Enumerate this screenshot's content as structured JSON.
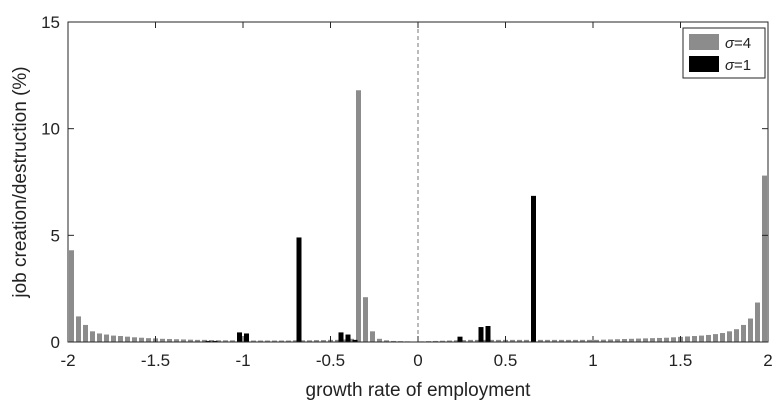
{
  "chart_data": {
    "type": "bar",
    "xlabel": "growth rate of employment",
    "ylabel": "job creation/destruction (%)",
    "xlim": [
      -2,
      2
    ],
    "ylim": [
      0,
      15
    ],
    "xticks": [
      -2,
      -1.5,
      -1,
      -0.5,
      0,
      0.5,
      1,
      1.5,
      2
    ],
    "xtick_labels": [
      "-2",
      "-1.5",
      "-1",
      "-0.5",
      "0",
      "0.5",
      "1",
      "1.5",
      "2"
    ],
    "yticks": [
      0,
      5,
      10,
      15
    ],
    "ytick_labels": [
      "0",
      "5",
      "10",
      "15"
    ],
    "reference_line": {
      "x": 0,
      "style": "dashed"
    },
    "legend": {
      "position": "top-right"
    },
    "series": [
      {
        "name": "σ=4",
        "legend_symbol": "σ",
        "legend_text": "=4",
        "color": "#8c8c8c",
        "x": [
          -1.98,
          -1.94,
          -1.9,
          -1.86,
          -1.82,
          -1.78,
          -1.74,
          -1.7,
          -1.66,
          -1.62,
          -1.58,
          -1.54,
          -1.5,
          -1.46,
          -1.42,
          -1.38,
          -1.34,
          -1.3,
          -1.26,
          -1.22,
          -1.18,
          -1.14,
          -1.1,
          -1.06,
          -0.98,
          -0.94,
          -0.9,
          -0.86,
          -0.82,
          -0.78,
          -0.74,
          -0.7,
          -0.66,
          -0.62,
          -0.58,
          -0.54,
          -0.5,
          -0.46,
          -0.42,
          -0.38,
          -0.34,
          -0.3,
          -0.26,
          -0.22,
          -0.18,
          -0.14,
          -0.1,
          -0.06,
          0.02,
          0.06,
          0.1,
          0.14,
          0.18,
          0.22,
          0.26,
          0.3,
          0.34,
          0.38,
          0.42,
          0.46,
          0.5,
          0.54,
          0.58,
          0.62,
          0.66,
          0.7,
          0.74,
          0.78,
          0.82,
          0.86,
          0.9,
          0.94,
          0.98,
          1.02,
          1.06,
          1.1,
          1.14,
          1.18,
          1.22,
          1.26,
          1.3,
          1.34,
          1.38,
          1.42,
          1.46,
          1.5,
          1.54,
          1.58,
          1.62,
          1.66,
          1.7,
          1.74,
          1.78,
          1.82,
          1.86,
          1.9,
          1.94,
          1.98
        ],
        "values": [
          4.3,
          1.2,
          0.8,
          0.5,
          0.4,
          0.35,
          0.3,
          0.28,
          0.25,
          0.22,
          0.2,
          0.18,
          0.17,
          0.15,
          0.14,
          0.13,
          0.12,
          0.11,
          0.1,
          0.1,
          0.09,
          0.08,
          0.08,
          0.08,
          0.08,
          0.07,
          0.07,
          0.07,
          0.07,
          0.07,
          0.07,
          0.08,
          0.08,
          0.08,
          0.09,
          0.09,
          0.1,
          0.1,
          0.12,
          0.15,
          11.8,
          2.1,
          0.5,
          0.15,
          0.08,
          0.05,
          0.04,
          0.03,
          0.03,
          0.04,
          0.05,
          0.06,
          0.07,
          0.08,
          0.09,
          0.1,
          0.1,
          0.1,
          0.1,
          0.1,
          0.1,
          0.1,
          0.1,
          0.1,
          0.1,
          0.1,
          0.1,
          0.1,
          0.1,
          0.1,
          0.1,
          0.1,
          0.1,
          0.1,
          0.11,
          0.12,
          0.13,
          0.14,
          0.15,
          0.16,
          0.17,
          0.18,
          0.19,
          0.2,
          0.22,
          0.24,
          0.26,
          0.28,
          0.3,
          0.33,
          0.37,
          0.42,
          0.5,
          0.6,
          0.8,
          1.1,
          1.85,
          7.8
        ]
      },
      {
        "name": "σ=1",
        "legend_symbol": "σ",
        "legend_text": "=1",
        "color": "#000000",
        "x": [
          -1.2,
          -1.16,
          -1.02,
          -0.98,
          -0.68,
          -0.44,
          -0.4,
          -0.36,
          0.24,
          0.36,
          0.4,
          0.66
        ],
        "values": [
          0.05,
          0.05,
          0.45,
          0.4,
          4.9,
          0.45,
          0.35,
          0.1,
          0.25,
          0.7,
          0.75,
          6.85
        ]
      }
    ]
  }
}
